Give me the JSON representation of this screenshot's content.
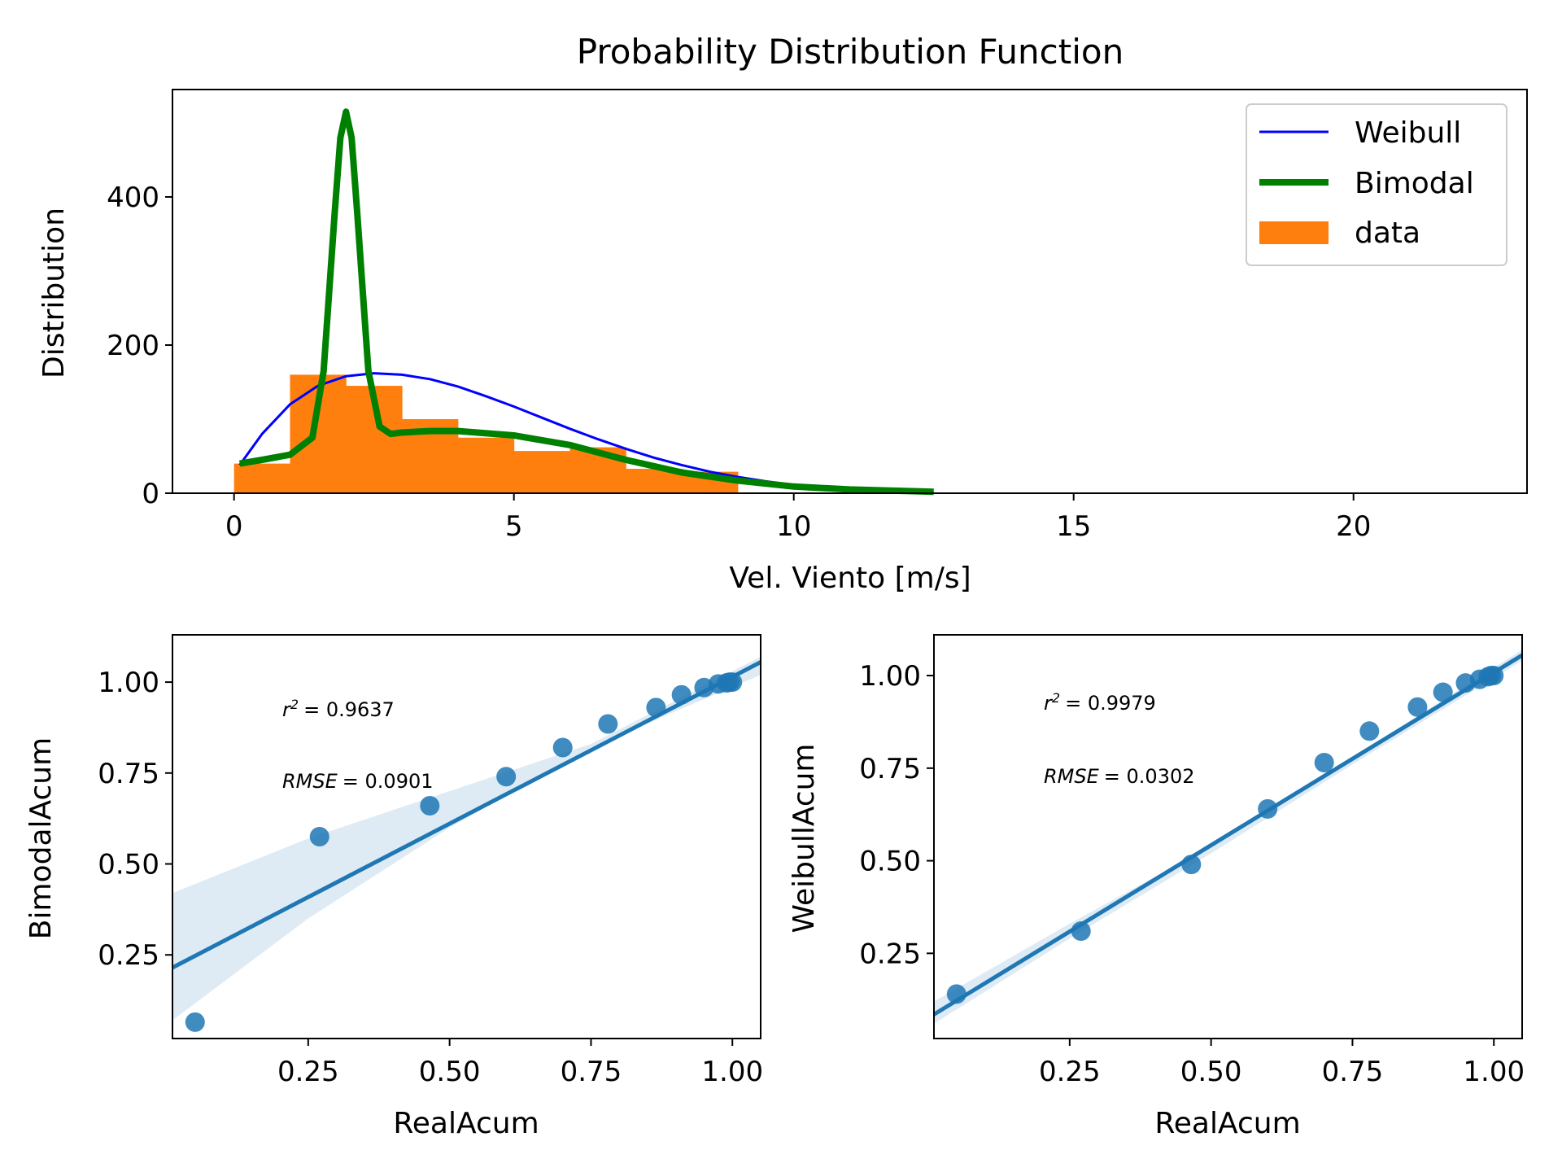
{
  "chart_data": [
    {
      "type": "bar",
      "title": "Probability Distribution Function",
      "xlabel": "Vel. Viento [m/s]",
      "ylabel": "Distribution",
      "xlim": [
        -1.1,
        23.1
      ],
      "ylim": [
        0,
        545
      ],
      "xticks": [
        0,
        5,
        10,
        15,
        20
      ],
      "yticks": [
        0,
        200,
        400
      ],
      "grid": false,
      "legend_position": "upper right",
      "legend": [
        "Weibull",
        "Bimodal",
        "data"
      ],
      "colors": {
        "Weibull": "#0000ff",
        "Bimodal": "#008000",
        "data": "#ff7f0e"
      },
      "histogram": {
        "name": "data",
        "bin_edges": [
          0,
          1,
          2,
          3,
          4,
          5,
          6,
          7,
          8,
          9
        ],
        "counts": [
          40,
          160,
          145,
          100,
          75,
          57,
          62,
          33,
          29
        ]
      },
      "series": [
        {
          "name": "Weibull",
          "type": "line",
          "x": [
            0.1,
            0.5,
            1.0,
            1.5,
            2.0,
            2.5,
            3.0,
            3.5,
            4.0,
            4.5,
            5.0,
            5.5,
            6.0,
            6.5,
            7.0,
            7.5,
            8.0,
            8.5,
            9.0,
            9.5,
            10.0,
            10.5,
            11.0,
            11.5,
            12.0,
            12.5
          ],
          "y": [
            38,
            80,
            120,
            145,
            158,
            162,
            160,
            154,
            144,
            131,
            117,
            102,
            87,
            73,
            60,
            48,
            38,
            29,
            22,
            16,
            11,
            8,
            5,
            3.5,
            2,
            1.5
          ]
        },
        {
          "name": "Bimodal",
          "type": "line",
          "x": [
            0.1,
            0.5,
            1.0,
            1.4,
            1.6,
            1.8,
            1.9,
            2.0,
            2.1,
            2.2,
            2.4,
            2.6,
            2.8,
            3.0,
            3.5,
            4.0,
            5.0,
            6.0,
            7.0,
            8.0,
            9.0,
            10.0,
            11.0,
            12.0,
            12.5
          ],
          "y": [
            40,
            45,
            52,
            75,
            165,
            380,
            480,
            515,
            480,
            380,
            165,
            90,
            80,
            82,
            84,
            84,
            78,
            65,
            45,
            28,
            17,
            9,
            5,
            3,
            2
          ]
        }
      ]
    },
    {
      "type": "scatter",
      "xlabel": "RealAcum",
      "ylabel": "BimodalAcum",
      "xlim": [
        0.01,
        1.05
      ],
      "ylim": [
        0.02,
        1.13
      ],
      "xticks": [
        "0.25",
        "0.50",
        "0.75",
        "1.00"
      ],
      "yticks": [
        "0.25",
        "0.50",
        "0.75",
        "1.00"
      ],
      "grid": false,
      "color": "#1f77b4",
      "annotations": {
        "r2": "0.9637",
        "rmse": "0.0901"
      },
      "points": {
        "x": [
          0.05,
          0.27,
          0.465,
          0.6,
          0.7,
          0.78,
          0.865,
          0.91,
          0.95,
          0.975,
          0.99,
          0.995,
          1.0
        ],
        "y": [
          0.065,
          0.575,
          0.66,
          0.74,
          0.82,
          0.885,
          0.93,
          0.965,
          0.985,
          0.995,
          0.998,
          1.0,
          1.0
        ]
      },
      "regression": {
        "x": [
          0.01,
          1.05
        ],
        "y": [
          0.215,
          1.055
        ]
      },
      "confidence_band": {
        "x": [
          0.01,
          0.25,
          0.5,
          0.75,
          1.05
        ],
        "lower": [
          0.07,
          0.35,
          0.6,
          0.82,
          1.02
        ],
        "upper": [
          0.42,
          0.57,
          0.7,
          0.83,
          1.07
        ]
      }
    },
    {
      "type": "scatter",
      "xlabel": "RealAcum",
      "ylabel": "WeibullAcum",
      "xlim": [
        0.01,
        1.05
      ],
      "ylim": [
        0.02,
        1.11
      ],
      "xticks": [
        "0.25",
        "0.50",
        "0.75",
        "1.00"
      ],
      "yticks": [
        "0.25",
        "0.50",
        "0.75",
        "1.00"
      ],
      "grid": false,
      "color": "#1f77b4",
      "annotations": {
        "r2": "0.9979",
        "rmse": "0.0302"
      },
      "points": {
        "x": [
          0.05,
          0.27,
          0.465,
          0.6,
          0.7,
          0.78,
          0.865,
          0.91,
          0.95,
          0.975,
          0.99,
          0.995,
          1.0
        ],
        "y": [
          0.14,
          0.31,
          0.49,
          0.64,
          0.765,
          0.85,
          0.915,
          0.955,
          0.98,
          0.99,
          0.997,
          1.0,
          1.0
        ]
      },
      "regression": {
        "x": [
          0.01,
          1.05
        ],
        "y": [
          0.085,
          1.055
        ]
      },
      "confidence_band": {
        "x": [
          0.01,
          0.25,
          0.5,
          0.75,
          1.05
        ],
        "lower": [
          0.06,
          0.29,
          0.52,
          0.76,
          1.04
        ],
        "upper": [
          0.12,
          0.33,
          0.54,
          0.78,
          1.07
        ]
      }
    }
  ]
}
